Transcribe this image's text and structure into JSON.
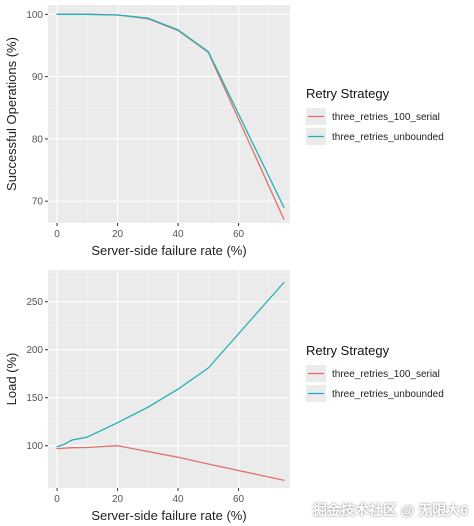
{
  "chart_data": [
    {
      "type": "line",
      "xlabel": "Server-side failure rate (%)",
      "ylabel": "Successful Operations (%)",
      "xlim": [
        -3,
        77
      ],
      "ylim": [
        66.5,
        101.5
      ],
      "xticks": [
        0,
        20,
        40,
        60
      ],
      "yticks": [
        70,
        80,
        90,
        100
      ],
      "grid": true,
      "legend": {
        "title": "Retry Strategy",
        "placement": "right",
        "entries": [
          "three_retries_100_serial",
          "three_retries_unbounded"
        ]
      },
      "series": [
        {
          "name": "three_retries_100_serial",
          "color": "#e0736e",
          "points": [
            [
              0,
              100
            ],
            [
              5,
              100
            ],
            [
              10,
              100
            ],
            [
              20,
              99.9
            ],
            [
              30,
              99.3
            ],
            [
              40,
              97.4
            ],
            [
              50,
              93.9
            ],
            [
              75,
              67.1
            ]
          ]
        },
        {
          "name": "three_retries_unbounded",
          "color": "#23b0b7",
          "points": [
            [
              0,
              100
            ],
            [
              5,
              100
            ],
            [
              10,
              100
            ],
            [
              20,
              99.9
            ],
            [
              30,
              99.4
            ],
            [
              40,
              97.5
            ],
            [
              50,
              94.0
            ],
            [
              75,
              69.0
            ]
          ]
        }
      ]
    },
    {
      "type": "line",
      "xlabel": "Server-side failure rate (%)",
      "ylabel": "Load (%)",
      "xlim": [
        -3,
        77
      ],
      "ylim": [
        56,
        283
      ],
      "xticks": [
        0,
        20,
        40,
        60
      ],
      "yticks": [
        100,
        150,
        200,
        250
      ],
      "grid": true,
      "legend": {
        "title": "Retry Strategy",
        "placement": "right",
        "entries": [
          "three_retries_100_serial",
          "three_retries_unbounded"
        ]
      },
      "series": [
        {
          "name": "three_retries_100_serial",
          "color": "#e0736e",
          "points": [
            [
              0,
              97
            ],
            [
              5,
              98
            ],
            [
              10,
              98.2
            ],
            [
              20,
              100
            ],
            [
              30,
              94
            ],
            [
              40,
              88
            ],
            [
              50,
              81
            ],
            [
              75,
              64
            ]
          ]
        },
        {
          "name": "three_retries_unbounded",
          "color": "#23b0b7",
          "points": [
            [
              0,
              99
            ],
            [
              2,
              101
            ],
            [
              5,
              106
            ],
            [
              10,
              109
            ],
            [
              20,
              124
            ],
            [
              30,
              140
            ],
            [
              40,
              159
            ],
            [
              50,
              181
            ],
            [
              75,
              270
            ]
          ]
        }
      ]
    }
  ],
  "watermark": "掘金技术社区 @ 无限大6"
}
